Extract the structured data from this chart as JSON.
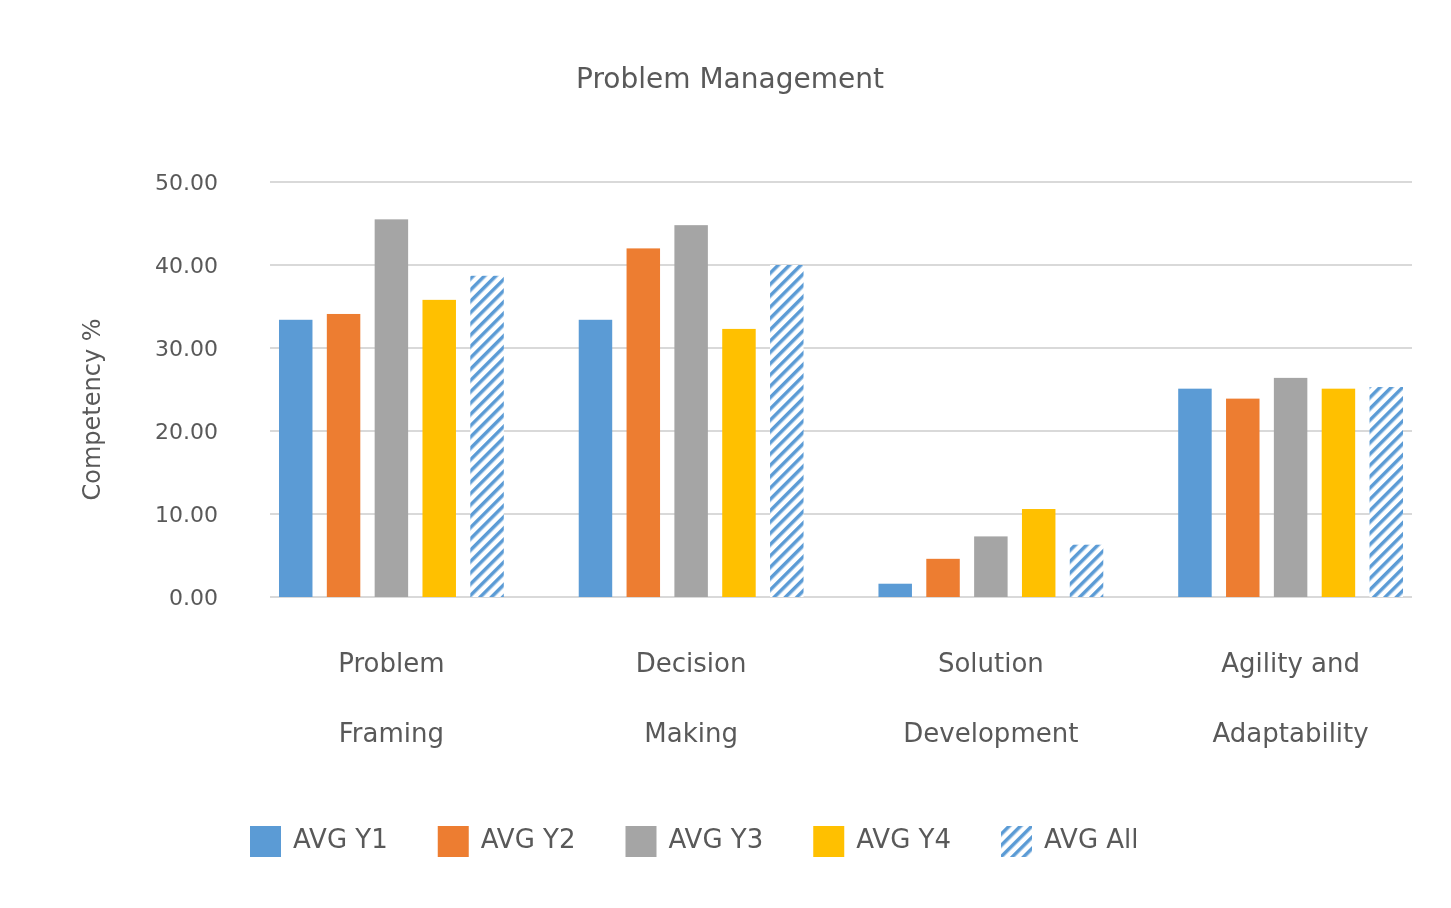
{
  "chart_data": {
    "type": "bar",
    "title": "Problem Management",
    "ylabel": "Competency %",
    "categories": [
      "Problem Framing",
      "Decision Making",
      "Solution Development",
      "Agility and Adaptability"
    ],
    "series": [
      {
        "name": "AVG Y1",
        "color": "#5b9bd5",
        "values": [
          33.4,
          33.4,
          1.6,
          25.1
        ]
      },
      {
        "name": "AVG Y2",
        "color": "#ed7d31",
        "values": [
          34.1,
          42.0,
          4.6,
          23.9
        ]
      },
      {
        "name": "AVG Y3",
        "color": "#a5a5a5",
        "values": [
          45.5,
          44.8,
          7.3,
          26.4
        ]
      },
      {
        "name": "AVG Y4",
        "color": "#ffc000",
        "values": [
          35.8,
          32.3,
          10.6,
          25.1
        ]
      },
      {
        "name": "AVG All",
        "color": "#5b9bd5",
        "values": [
          38.7,
          40.0,
          6.3,
          25.3
        ]
      }
    ],
    "ylim": [
      0,
      50
    ],
    "yticks": [
      {
        "value": 0,
        "label": "0.00"
      },
      {
        "value": 10,
        "label": "10.00"
      },
      {
        "value": 20,
        "label": "20.00"
      },
      {
        "value": 30,
        "label": "30.00"
      },
      {
        "value": 40,
        "label": "40.00"
      },
      {
        "value": 50,
        "label": "50.00"
      }
    ],
    "grid": "y",
    "legend": "bottom"
  }
}
